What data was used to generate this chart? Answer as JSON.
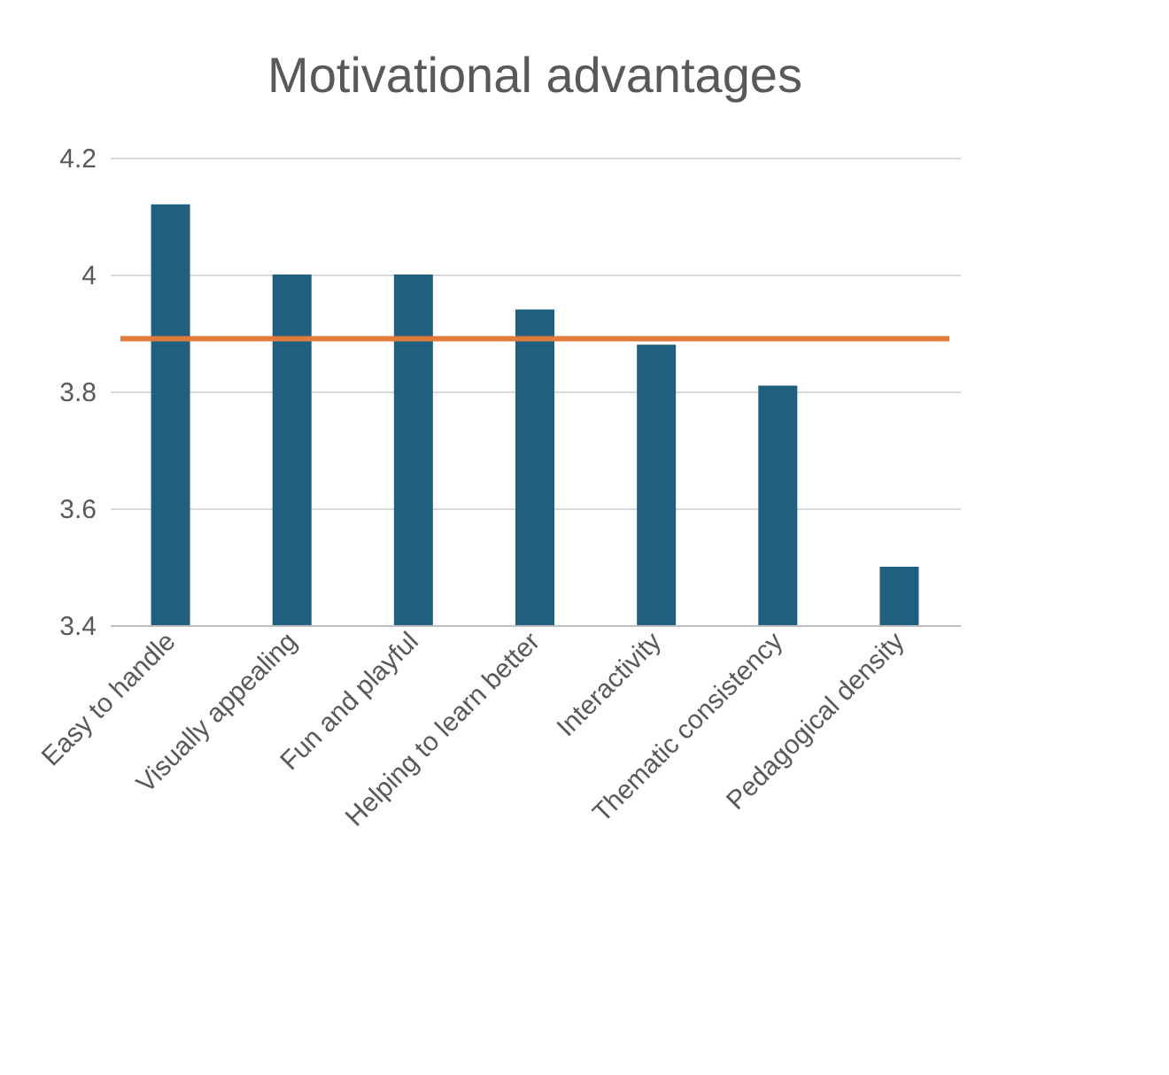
{
  "chart_data": {
    "type": "bar",
    "title": "Motivational advantages",
    "categories": [
      "Easy to handle",
      "Visually appealing",
      "Fun and playful",
      "Helping to learn better",
      "Interactivity",
      "Thematic consistency",
      "Pedagogical density"
    ],
    "values": [
      4.12,
      4.0,
      4.0,
      3.94,
      3.88,
      3.81,
      3.5
    ],
    "color": "#1f5f80",
    "ylim": [
      3.4,
      4.2
    ],
    "yticks": [
      3.4,
      3.6,
      3.8,
      {
        "value": 4,
        "label": "4"
      },
      4.2
    ],
    "grid": "y",
    "ref_lines": [
      {
        "axis": "y",
        "value": 3.89,
        "color": "#e07b39"
      }
    ]
  }
}
